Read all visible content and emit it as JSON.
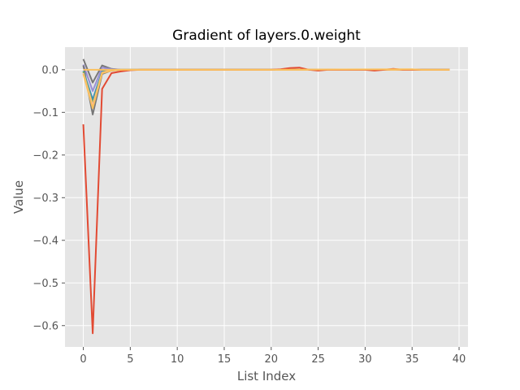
{
  "chart_data": {
    "type": "line",
    "title": "Gradient of layers.0.weight",
    "xlabel": "List Index",
    "ylabel": "Value",
    "xlim": [
      -1.95,
      40.95
    ],
    "ylim": [
      -0.65,
      0.053
    ],
    "xticks": [
      0,
      5,
      10,
      15,
      20,
      25,
      30,
      35,
      40
    ],
    "xtick_labels": [
      "0",
      "5",
      "10",
      "15",
      "20",
      "25",
      "30",
      "35",
      "40"
    ],
    "yticks": [
      0.0,
      -0.1,
      -0.2,
      -0.3,
      -0.4,
      -0.5,
      -0.6
    ],
    "ytick_labels": [
      "0.0",
      "−0.1",
      "−0.2",
      "−0.3",
      "−0.4",
      "−0.5",
      "−0.6"
    ],
    "grid": true,
    "style": "ggplot",
    "series": [
      {
        "color": "#777777",
        "points": [
          [
            0,
            0.025
          ],
          [
            1,
            -0.03
          ],
          [
            2,
            0.01
          ],
          [
            3,
            0.002
          ],
          [
            4,
            0.0
          ],
          [
            5,
            0.0
          ],
          [
            39,
            0.0
          ]
        ]
      },
      {
        "color": "#988ED5",
        "points": [
          [
            0,
            0.012
          ],
          [
            1,
            -0.05
          ],
          [
            2,
            0.005
          ],
          [
            3,
            0.001
          ],
          [
            4,
            0.0
          ],
          [
            5,
            0.0
          ],
          [
            39,
            0.0
          ]
        ]
      },
      {
        "color": "#777777",
        "points": [
          [
            0,
            0.01
          ],
          [
            1,
            -0.105
          ],
          [
            2,
            -0.01
          ],
          [
            3,
            -0.002
          ],
          [
            4,
            0.0
          ],
          [
            5,
            0.0
          ],
          [
            39,
            0.0
          ]
        ]
      },
      {
        "color": "#348ABD",
        "points": [
          [
            0,
            -0.003
          ],
          [
            1,
            -0.07
          ],
          [
            2,
            -0.004
          ],
          [
            3,
            -0.001
          ],
          [
            4,
            0.0
          ],
          [
            5,
            0.0
          ],
          [
            39,
            0.0
          ]
        ]
      },
      {
        "color": "#8EBA42",
        "points": [
          [
            0,
            -0.005
          ],
          [
            1,
            -0.08
          ],
          [
            2,
            -0.006
          ],
          [
            3,
            -0.001
          ],
          [
            4,
            0.0
          ],
          [
            5,
            0.0
          ],
          [
            39,
            0.0
          ]
        ]
      },
      {
        "color": "#FFB5B8",
        "points": [
          [
            0,
            -0.008
          ],
          [
            1,
            -0.085
          ],
          [
            2,
            -0.007
          ],
          [
            3,
            -0.001
          ],
          [
            4,
            0.0
          ],
          [
            5,
            0.0
          ],
          [
            39,
            0.0
          ]
        ]
      },
      {
        "color": "#FBC15E",
        "points": [
          [
            0,
            -0.01
          ],
          [
            1,
            -0.09
          ],
          [
            2,
            -0.008
          ],
          [
            3,
            -0.002
          ],
          [
            4,
            0.0
          ],
          [
            5,
            0.0
          ],
          [
            39,
            0.0
          ]
        ]
      },
      {
        "color": "#E24A33",
        "points": [
          [
            0,
            -0.128
          ],
          [
            1,
            -0.618
          ],
          [
            2,
            -0.045
          ],
          [
            3,
            -0.008
          ],
          [
            4,
            -0.004
          ],
          [
            5,
            -0.001
          ],
          [
            6,
            0.0
          ],
          [
            20,
            0.0
          ],
          [
            21,
            0.001
          ],
          [
            22,
            0.004
          ],
          [
            23,
            0.005
          ],
          [
            24,
            0.0
          ],
          [
            25,
            -0.002
          ],
          [
            26,
            0.0
          ],
          [
            30,
            0.0
          ],
          [
            31,
            -0.002
          ],
          [
            32,
            0.0
          ],
          [
            33,
            0.002
          ],
          [
            34,
            0.0
          ],
          [
            39,
            0.0
          ]
        ]
      },
      {
        "color": "#FBC15E",
        "points": [
          [
            0,
            0.0
          ],
          [
            5,
            0.0
          ],
          [
            20,
            0.0
          ],
          [
            35,
            0.001
          ],
          [
            36,
            0.0
          ],
          [
            39,
            0.0
          ]
        ]
      }
    ]
  }
}
